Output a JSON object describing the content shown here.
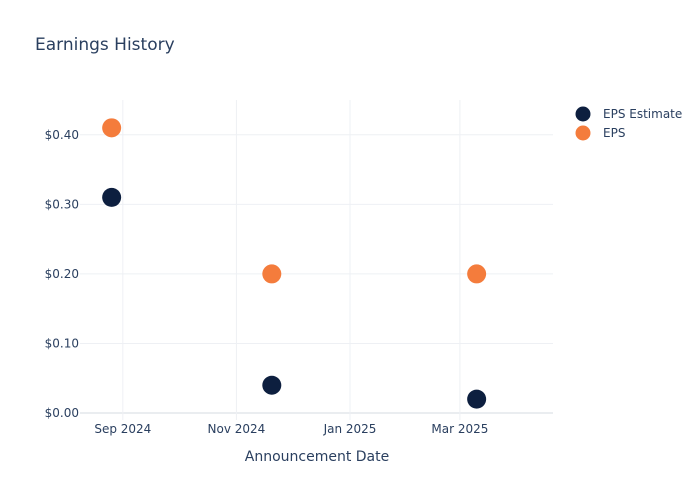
{
  "chart_data": {
    "type": "scatter",
    "title": "Earnings History",
    "xlabel": "Announcement Date",
    "ylabel": "",
    "x_tick_labels": [
      "Sep 2024",
      "Nov 2024",
      "Jan 2025",
      "Mar 2025"
    ],
    "y_tick_labels": [
      "$0.00",
      "$0.10",
      "$0.20",
      "$0.30",
      "$0.40"
    ],
    "ylim": [
      -0.01,
      0.45
    ],
    "xlim": [
      "2024-08-09",
      "2025-04-20"
    ],
    "grid": true,
    "legend_position": "top-right",
    "series": [
      {
        "name": "EPS Estimate",
        "color": "#0d1f3f",
        "points": [
          {
            "x": "2024-08-26",
            "y": 0.31
          },
          {
            "x": "2024-11-20",
            "y": 0.04
          },
          {
            "x": "2025-03-10",
            "y": 0.02
          }
        ]
      },
      {
        "name": "EPS",
        "color": "#f47c3c",
        "points": [
          {
            "x": "2024-08-26",
            "y": 0.41
          },
          {
            "x": "2024-11-20",
            "y": 0.2
          },
          {
            "x": "2025-03-10",
            "y": 0.2
          }
        ]
      }
    ]
  }
}
